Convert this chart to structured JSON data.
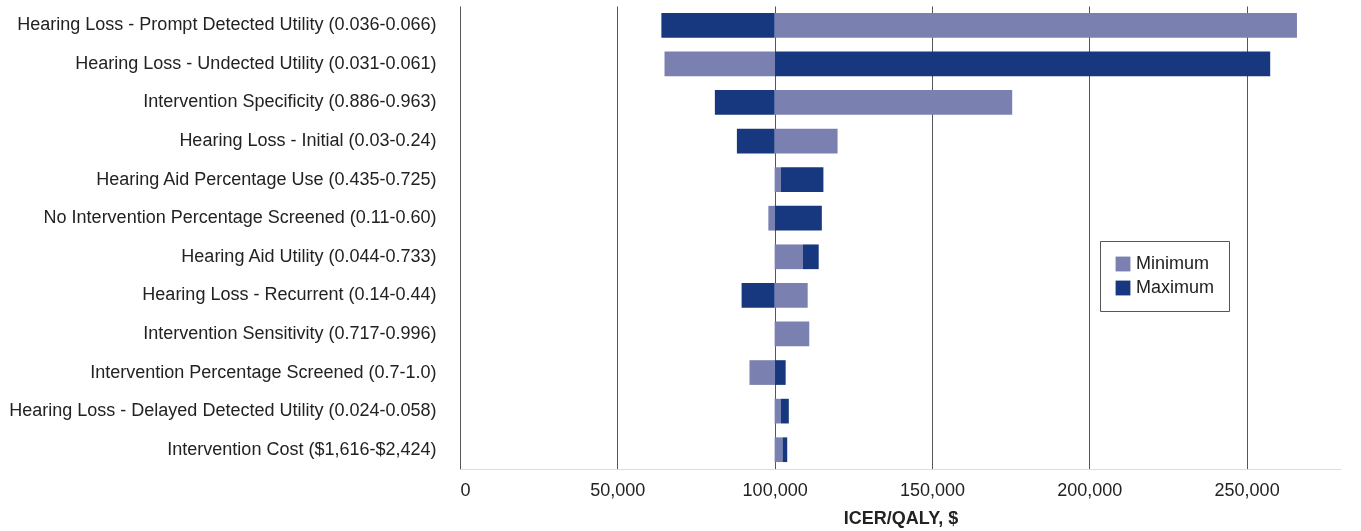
{
  "chart_data": {
    "type": "bar",
    "orientation": "horizontal",
    "categories": [
      "Hearing Loss - Prompt Detected Utility (0.036-0.066)",
      "Hearing Loss - Undected Utility (0.031-0.061)",
      "Intervention Specificity (0.886-0.963)",
      "Hearing Loss - Initial (0.03-0.24)",
      "Hearing Aid Percentage Use (0.435-0.725)",
      "No Intervention Percentage Screened (0.11-0.60)",
      "Hearing Aid Utility (0.044-0.733)",
      "Hearing Loss - Recurrent (0.14-0.44)",
      "Intervention Sensitivity (0.717-0.996)",
      "Intervention Percentage Screened (0.7-1.0)",
      "Hearing Loss - Delayed Detected Utility (0.024-0.058)",
      "Intervention Cost ($1,616-$2,424)"
    ],
    "series": [
      {
        "name": "Minimum",
        "color": "#7a80b0",
        "base": [
          100000,
          100000,
          100000,
          100000,
          100000,
          100000,
          100000,
          100000,
          100000,
          100000,
          100000,
          100000
        ],
        "values": [
          166000,
          -35000,
          75500,
          20000,
          2000,
          -2000,
          9000,
          10500,
          11000,
          -8000,
          2000,
          2500
        ]
      },
      {
        "name": "Maximum",
        "color": "#17387e",
        "base": [
          100000,
          100000,
          100000,
          100000,
          102000,
          100000,
          109000,
          100000,
          null,
          100000,
          102000,
          102500
        ],
        "values": [
          -36000,
          157500,
          -19000,
          -12000,
          13500,
          15000,
          5000,
          -10500,
          null,
          3500,
          2500,
          1500
        ]
      }
    ],
    "xlim": [
      0,
      280000
    ],
    "xticks": [
      0,
      {
        "value": 50000,
        "label": "50,000"
      },
      {
        "value": 100000,
        "label": "100,000"
      },
      {
        "value": 150000,
        "label": "150,000"
      },
      {
        "value": 200000,
        "label": "200,000"
      },
      {
        "value": 250000,
        "label": "250,000"
      }
    ],
    "xlabel": "ICER/QALY, $",
    "grid": "x",
    "legend": "right"
  }
}
